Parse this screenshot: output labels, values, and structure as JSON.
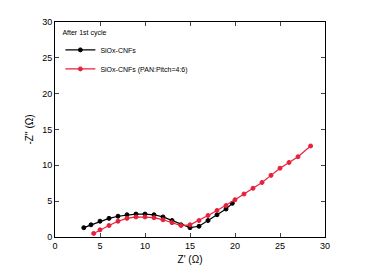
{
  "chart_data": {
    "type": "scatter",
    "x_label": "Z' (Ω)",
    "y_label": "-Z'' (Ω)",
    "legend_title": "After 1st cycle",
    "legend": "upper left",
    "grid": false,
    "marker": "circle",
    "line_style": "solid",
    "xlim": [
      0,
      30
    ],
    "ylim": [
      0,
      30
    ],
    "xticks": [
      0,
      5,
      10,
      15,
      20,
      25,
      30
    ],
    "yticks": [
      0,
      5,
      10,
      15,
      20,
      25,
      30
    ],
    "series": [
      {
        "name": "SiOx-CNFs",
        "color": "#000000",
        "x": [
          3.2,
          4,
          5,
          6,
          7,
          8,
          9,
          10,
          11,
          12,
          13,
          14,
          15,
          16,
          17,
          18,
          19,
          19.7
        ],
        "values": [
          1.3,
          1.7,
          2.2,
          2.6,
          2.9,
          3.1,
          3.2,
          3.2,
          3.1,
          2.8,
          2.3,
          1.7,
          1.3,
          1.5,
          2.3,
          3.1,
          3.9,
          4.7
        ]
      },
      {
        "name": "SiOx-CNFs (PAN:Pitch=4:6)",
        "color": "#e8203a",
        "x": [
          4.3,
          5,
          6,
          7,
          8,
          9,
          10,
          11,
          12,
          13,
          14,
          15,
          16,
          17,
          18,
          19,
          20,
          21,
          22,
          23,
          24,
          25,
          26,
          27,
          28.4
        ],
        "values": [
          0.5,
          1.0,
          1.6,
          2.2,
          2.6,
          2.8,
          2.8,
          2.7,
          2.4,
          2.0,
          1.6,
          1.7,
          2.3,
          3.0,
          3.7,
          4.4,
          5.2,
          6.0,
          6.8,
          7.6,
          8.6,
          9.6,
          10.4,
          11.2,
          12.7
        ]
      }
    ]
  }
}
